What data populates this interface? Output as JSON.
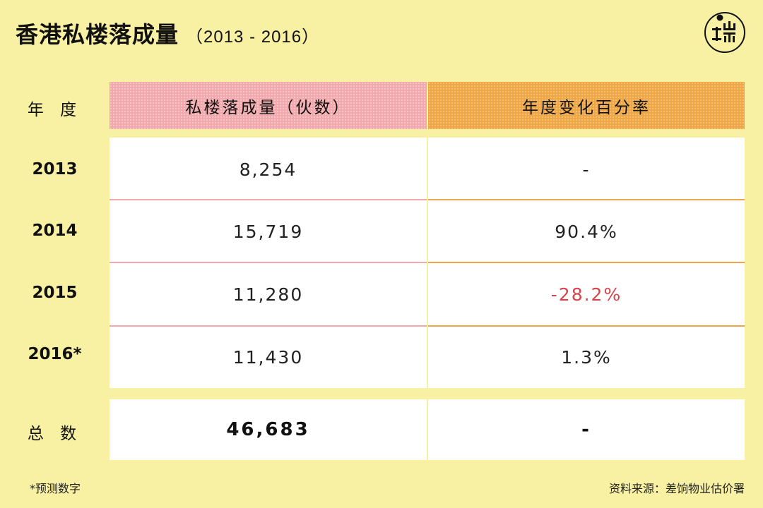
{
  "title": "香港私楼落成量",
  "subtitle": "（2013 - 2016）",
  "logo_name": "theinitium-logo",
  "chart_data": {
    "type": "table",
    "columns": [
      "年 度",
      "私楼落成量（伙数）",
      "年度变化百分率"
    ],
    "rows": [
      {
        "year": "2013",
        "units": "8,254",
        "change": "-"
      },
      {
        "year": "2014",
        "units": "15,719",
        "change": "90.4%"
      },
      {
        "year": "2015",
        "units": "11,280",
        "change": "-28.2%"
      },
      {
        "year": "2016*",
        "units": "11,430",
        "change": "1.3%"
      }
    ],
    "total": {
      "label": "总 数",
      "units": "46,683",
      "change": "-"
    }
  },
  "footnote": "*预测数字",
  "source": "资料来源：差饷物业估价署",
  "colors": {
    "background": "#f8f0a2",
    "pink": "#f2a9ae",
    "orange": "#efa745",
    "negative": "#d9434a"
  }
}
